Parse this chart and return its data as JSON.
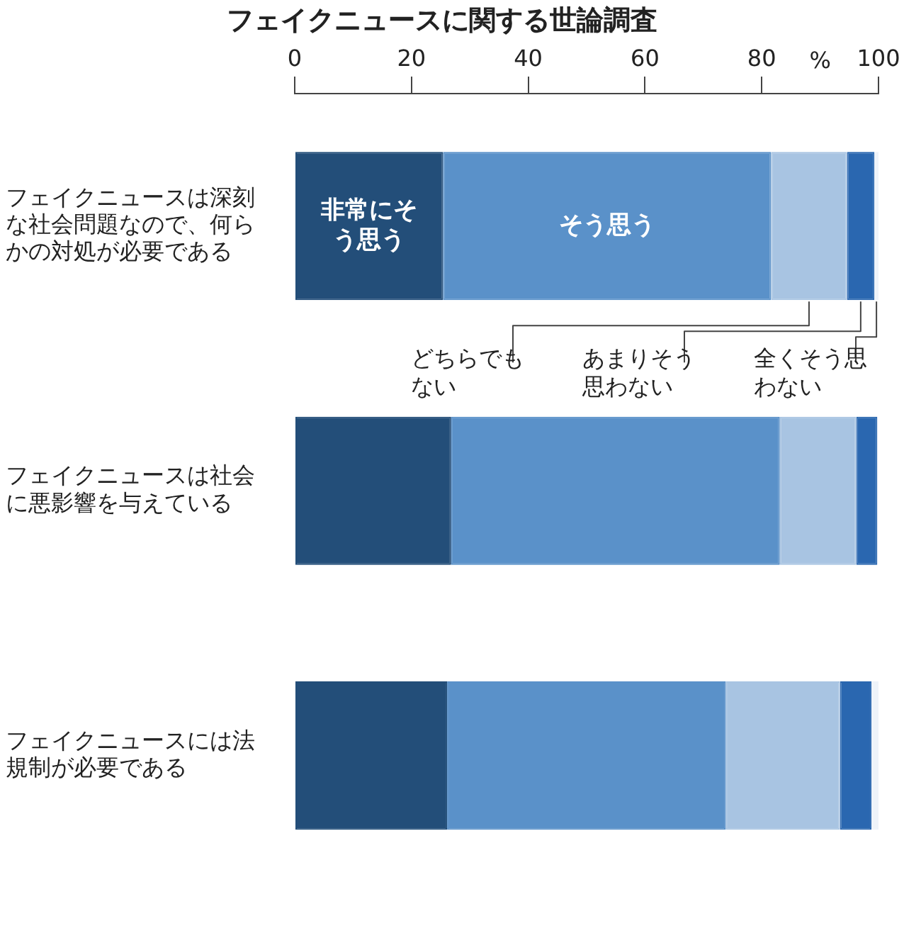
{
  "chart_data": {
    "type": "bar",
    "title": "フェイクニュースに関する世論調査",
    "xlabel": "%",
    "orientation": "horizontal",
    "stacked": true,
    "xlim": [
      0,
      100
    ],
    "xticks": [
      0,
      20,
      40,
      60,
      80,
      100
    ],
    "grid": false,
    "legend": false,
    "categories": [
      "フェイクニュースは深刻な社会問題なので、何らかの対処が必要である",
      "フェイクニュースは社会に悪影響を与えている",
      "フェイクニュースには法規制が必要である"
    ],
    "series": [
      {
        "name": "非常にそう思う",
        "color": "#234e79",
        "values": [
          25.4,
          26.8,
          26.1
        ]
      },
      {
        "name": "そう思う",
        "color": "#5a91c9",
        "values": [
          56.2,
          56.3,
          47.7
        ]
      },
      {
        "name": "どちらでもない",
        "color": "#a8c4e2",
        "values": [
          13.0,
          13.1,
          19.6
        ]
      },
      {
        "name": "あまりそう思わない",
        "color": "#2a67b0",
        "values": [
          4.7,
          3.6,
          5.4
        ]
      },
      {
        "name": "全くそう思わない",
        "color": "#eef3f9",
        "values": [
          0.7,
          null,
          1.2
        ]
      }
    ]
  }
}
